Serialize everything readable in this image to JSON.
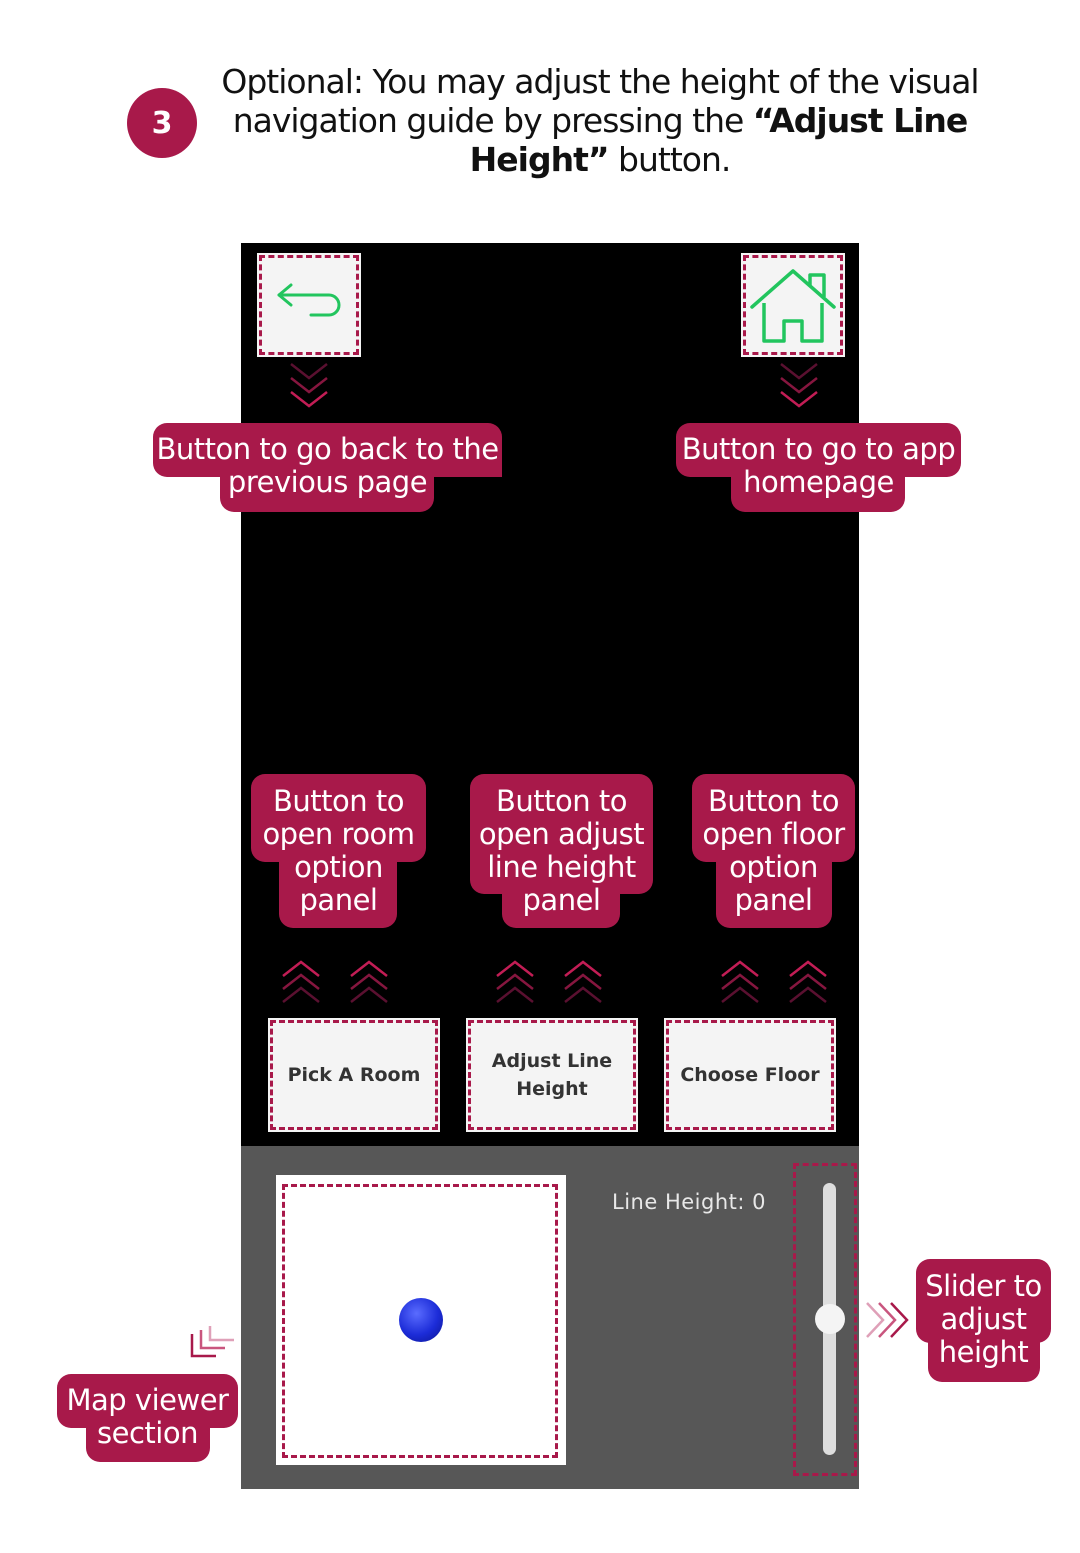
{
  "step": {
    "number": "3",
    "text_before": "Optional: You may adjust the height of the visual navigation guide by pressing the ",
    "text_bold": "“Adjust Line Height”",
    "text_after": " button."
  },
  "screen": {
    "back_button_icon": "back-arrow-icon",
    "home_button_icon": "home-icon",
    "buttons": [
      {
        "label": "Pick A Room"
      },
      {
        "label": "Adjust Line Height"
      },
      {
        "label": "Choose Floor"
      }
    ],
    "line_height_label": "Line Height: 0",
    "slider_value": 0
  },
  "callouts": {
    "back": "Button to go back to the previous page",
    "home": "Button to go to app homepage",
    "room": "Button to open room option panel",
    "adjust": "Button to open adjust line height panel",
    "floor": "Button to open floor option panel",
    "map": "Map viewer section",
    "slider": "Slider to adjust height"
  },
  "colors": {
    "accent": "#a8194a",
    "icon_green": "#22c55e",
    "screen_bg": "#000000",
    "panel_bg": "#575757"
  }
}
